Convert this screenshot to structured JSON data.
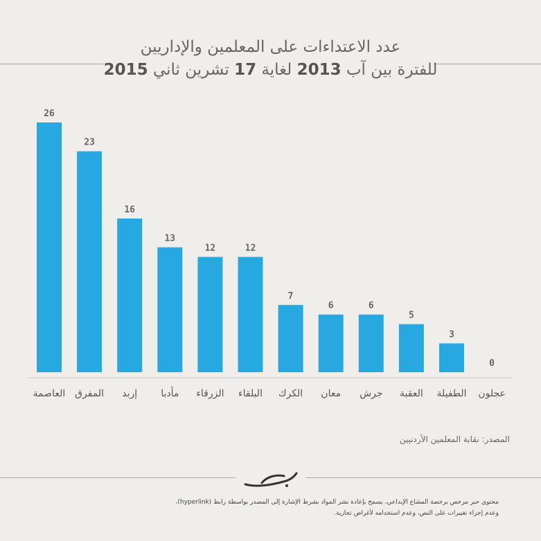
{
  "chart_data": {
    "type": "bar",
    "title_line1": "عدد الاعتداءات على المعلمين والإداريين",
    "title_line2_parts": [
      "للفترة بين آب ",
      "2013",
      " لغاية ",
      "17",
      " تشرين ثاني ",
      "2015"
    ],
    "categories": [
      "العاصمة",
      "المفرق",
      "إربد",
      "مأدبا",
      "الزرقاء",
      "البلقاء",
      "الكرك",
      "معان",
      "جرش",
      "العقبة",
      "الطفيلة",
      "عجلون"
    ],
    "values": [
      26,
      23,
      16,
      13,
      12,
      12,
      7,
      6,
      6,
      5,
      3,
      0
    ],
    "ylim": [
      0,
      26
    ],
    "bar_color": "#28a8e0",
    "grid": false,
    "legend": "none"
  },
  "source": "المصدر: نقابة المعلمين الأردنيين",
  "footer": {
    "line1": "محتوى حبر مرخص برخصة المشاع الإبداعي، يسمح بإعادة نشر المواد بشرط الإشارة إلى المصدر بواسطة رابط (hyperlink)،",
    "line2": "وعدم إجراء تغييرات على النص، وعدم استخدامه لأغراض تجارية."
  },
  "logo_icon": "7iber-logo-icon"
}
